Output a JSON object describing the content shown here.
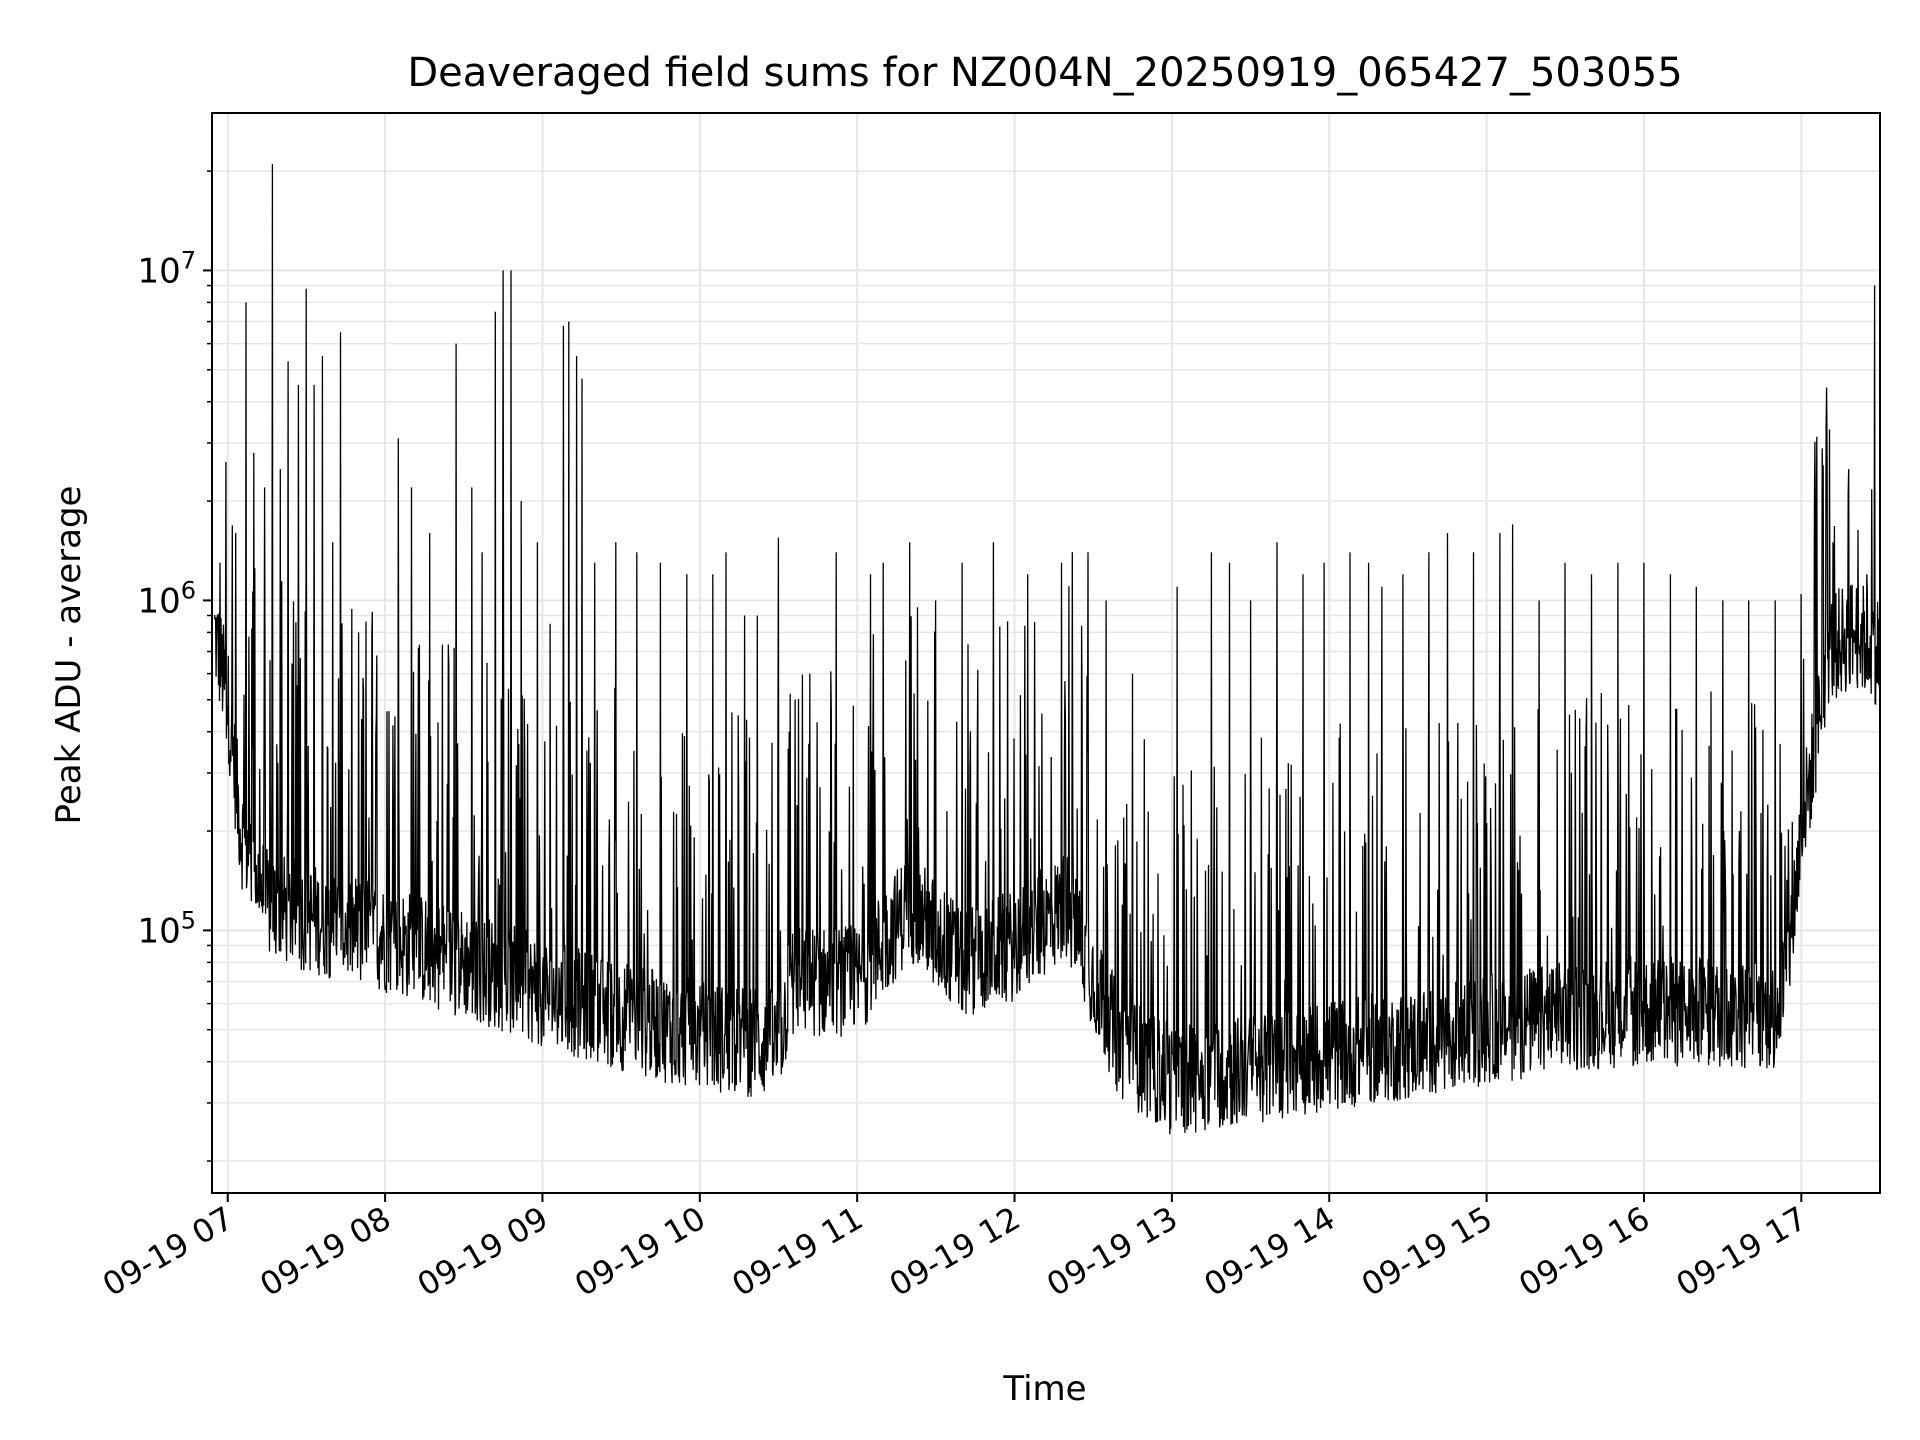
{
  "chart_data": {
    "type": "line",
    "title": "Deaveraged field sums for NZ004N_20250919_065427_503055",
    "xlabel": "Time",
    "ylabel": "Peak ADU - average",
    "yscale": "log",
    "grid": true,
    "grid_minor": true,
    "line_color": "#000000",
    "grid_color": "#e6e6e6",
    "xlim": [
      "2025-09-19 06:54",
      "2025-09-19 17:30"
    ],
    "ylim": [
      16000,
      30000000
    ],
    "x_ticks": [
      "2025-09-19 07:00",
      "2025-09-19 08:00",
      "2025-09-19 09:00",
      "2025-09-19 10:00",
      "2025-09-19 11:00",
      "2025-09-19 12:00",
      "2025-09-19 13:00",
      "2025-09-19 14:00",
      "2025-09-19 15:00",
      "2025-09-19 16:00",
      "2025-09-19 17:00"
    ],
    "x_tick_labels": [
      "09-19 07",
      "09-19 08",
      "09-19 09",
      "09-19 10",
      "09-19 11",
      "09-19 12",
      "09-19 13",
      "09-19 14",
      "09-19 15",
      "09-19 16",
      "09-19 17"
    ],
    "y_ticks": [
      100000,
      1000000,
      10000000
    ],
    "y_tick_labels": [
      {
        "base": "10",
        "exp": "5"
      },
      {
        "base": "10",
        "exp": "6"
      },
      {
        "base": "10",
        "exp": "7"
      }
    ],
    "series": [
      {
        "baseline": [
          [
            "2025-09-19 06:55",
            800000
          ],
          [
            "2025-09-19 07:00",
            500000
          ],
          [
            "2025-09-19 07:05",
            200000
          ],
          [
            "2025-09-19 07:15",
            120000
          ],
          [
            "2025-09-19 07:30",
            110000
          ],
          [
            "2025-09-19 08:00",
            95000
          ],
          [
            "2025-09-19 08:30",
            80000
          ],
          [
            "2025-09-19 09:00",
            65000
          ],
          [
            "2025-09-19 09:30",
            55000
          ],
          [
            "2025-09-19 10:00",
            48000
          ],
          [
            "2025-09-19 10:30",
            45000
          ],
          [
            "2025-09-19 10:35",
            70000
          ],
          [
            "2025-09-19 11:00",
            70000
          ],
          [
            "2025-09-19 11:20",
            120000
          ],
          [
            "2025-09-19 11:40",
            80000
          ],
          [
            "2025-09-19 12:00",
            90000
          ],
          [
            "2025-09-19 12:20",
            120000
          ],
          [
            "2025-09-19 12:40",
            45000
          ],
          [
            "2025-09-19 13:00",
            35000
          ],
          [
            "2025-09-19 13:30",
            38000
          ],
          [
            "2025-09-19 14:00",
            42000
          ],
          [
            "2025-09-19 14:30",
            45000
          ],
          [
            "2025-09-19 15:00",
            50000
          ],
          [
            "2025-09-19 15:30",
            55000
          ],
          [
            "2025-09-19 16:00",
            57000
          ],
          [
            "2025-09-19 16:50",
            55000
          ],
          [
            "2025-09-19 16:55",
            80000
          ],
          [
            "2025-09-19 17:00",
            200000
          ],
          [
            "2025-09-19 17:05",
            350000
          ],
          [
            "2025-09-19 17:10",
            700000
          ],
          [
            "2025-09-19 17:20",
            800000
          ],
          [
            "2025-09-19 17:30",
            700000
          ]
        ],
        "peaks": [
          [
            "2025-09-19 06:57",
            1300000
          ],
          [
            "2025-09-19 07:03",
            1600000
          ],
          [
            "2025-09-19 07:07",
            8000000
          ],
          [
            "2025-09-19 07:10",
            2800000
          ],
          [
            "2025-09-19 07:14",
            2200000
          ],
          [
            "2025-09-19 07:17",
            21000000
          ],
          [
            "2025-09-19 07:20",
            2500000
          ],
          [
            "2025-09-19 07:23",
            5300000
          ],
          [
            "2025-09-19 07:27",
            4500000
          ],
          [
            "2025-09-19 07:30",
            8800000
          ],
          [
            "2025-09-19 07:33",
            4500000
          ],
          [
            "2025-09-19 07:36",
            5500000
          ],
          [
            "2025-09-19 07:40",
            1500000
          ],
          [
            "2025-09-19 07:43",
            6500000
          ],
          [
            "2025-09-19 07:50",
            800000
          ],
          [
            "2025-09-19 07:55",
            800000
          ],
          [
            "2025-09-19 08:05",
            3100000
          ],
          [
            "2025-09-19 08:10",
            2200000
          ],
          [
            "2025-09-19 08:17",
            1600000
          ],
          [
            "2025-09-19 08:27",
            6000000
          ],
          [
            "2025-09-19 08:33",
            2200000
          ],
          [
            "2025-09-19 08:37",
            1400000
          ],
          [
            "2025-09-19 08:42",
            7500000
          ],
          [
            "2025-09-19 08:45",
            10000000
          ],
          [
            "2025-09-19 08:48",
            10000000
          ],
          [
            "2025-09-19 08:52",
            2000000
          ],
          [
            "2025-09-19 08:58",
            1500000
          ],
          [
            "2025-09-19 09:03",
            850000
          ],
          [
            "2025-09-19 09:08",
            6800000
          ],
          [
            "2025-09-19 09:10",
            7000000
          ],
          [
            "2025-09-19 09:13",
            5500000
          ],
          [
            "2025-09-19 09:15",
            4700000
          ],
          [
            "2025-09-19 09:20",
            1300000
          ],
          [
            "2025-09-19 09:28",
            1500000
          ],
          [
            "2025-09-19 09:36",
            1400000
          ],
          [
            "2025-09-19 09:45",
            1300000
          ],
          [
            "2025-09-19 09:55",
            1200000
          ],
          [
            "2025-09-19 10:05",
            1200000
          ],
          [
            "2025-09-19 10:10",
            1400000
          ],
          [
            "2025-09-19 10:17",
            900000
          ],
          [
            "2025-09-19 10:22",
            900000
          ],
          [
            "2025-09-19 10:30",
            1550000
          ],
          [
            "2025-09-19 10:42",
            600000
          ],
          [
            "2025-09-19 10:52",
            1400000
          ],
          [
            "2025-09-19 11:05",
            1200000
          ],
          [
            "2025-09-19 11:10",
            1300000
          ],
          [
            "2025-09-19 11:20",
            1500000
          ],
          [
            "2025-09-19 11:30",
            1000000
          ],
          [
            "2025-09-19 11:40",
            1300000
          ],
          [
            "2025-09-19 11:52",
            1500000
          ],
          [
            "2025-09-19 12:05",
            1200000
          ],
          [
            "2025-09-19 12:18",
            1300000
          ],
          [
            "2025-09-19 12:22",
            1400000
          ],
          [
            "2025-09-19 12:28",
            1400000
          ],
          [
            "2025-09-19 12:35",
            1000000
          ],
          [
            "2025-09-19 12:45",
            600000
          ],
          [
            "2025-09-19 13:02",
            1100000
          ],
          [
            "2025-09-19 13:15",
            1400000
          ],
          [
            "2025-09-19 13:22",
            1300000
          ],
          [
            "2025-09-19 13:30",
            1000000
          ],
          [
            "2025-09-19 13:40",
            1500000
          ],
          [
            "2025-09-19 13:50",
            1200000
          ],
          [
            "2025-09-19 13:58",
            1300000
          ],
          [
            "2025-09-19 14:08",
            1400000
          ],
          [
            "2025-09-19 14:15",
            1300000
          ],
          [
            "2025-09-19 14:20",
            1100000
          ],
          [
            "2025-09-19 14:28",
            1200000
          ],
          [
            "2025-09-19 14:38",
            1400000
          ],
          [
            "2025-09-19 14:45",
            1600000
          ],
          [
            "2025-09-19 14:55",
            1400000
          ],
          [
            "2025-09-19 15:05",
            1600000
          ],
          [
            "2025-09-19 15:10",
            1700000
          ],
          [
            "2025-09-19 15:20",
            1000000
          ],
          [
            "2025-09-19 15:30",
            1300000
          ],
          [
            "2025-09-19 15:40",
            1200000
          ],
          [
            "2025-09-19 15:50",
            1300000
          ],
          [
            "2025-09-19 16:00",
            1300000
          ],
          [
            "2025-09-19 16:10",
            1200000
          ],
          [
            "2025-09-19 16:20",
            1100000
          ],
          [
            "2025-09-19 16:30",
            1000000
          ],
          [
            "2025-09-19 16:40",
            1000000
          ],
          [
            "2025-09-19 16:50",
            1000000
          ],
          [
            "2025-09-19 17:05",
            1900000
          ],
          [
            "2025-09-19 17:12",
            1500000
          ],
          [
            "2025-09-19 17:18",
            2500000
          ],
          [
            "2025-09-19 17:25",
            1200000
          ],
          [
            "2025-09-19 17:28",
            9000000
          ]
        ]
      }
    ]
  }
}
